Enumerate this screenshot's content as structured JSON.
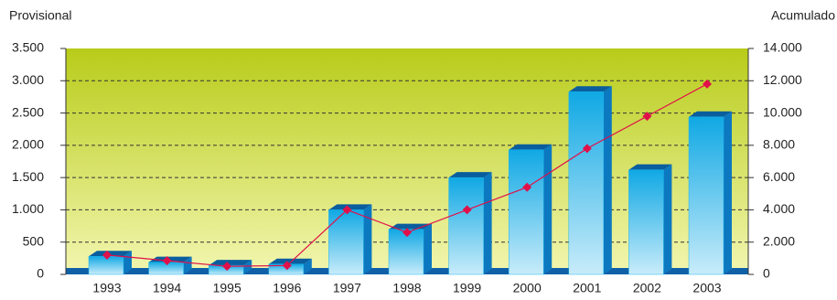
{
  "chart_data": {
    "type": "bar-line",
    "ylabel": "Provisional",
    "y2label": "Acumulado",
    "categories": [
      "1993",
      "1994",
      "1995",
      "1996",
      "1997",
      "1998",
      "1999",
      "2000",
      "2001",
      "2002",
      "2003"
    ],
    "series": [
      {
        "type": "bar",
        "color": "#18b4ec",
        "values": [
          280,
          190,
          140,
          160,
          1000,
          700,
          1500,
          1930,
          2830,
          1620,
          2440
        ]
      },
      {
        "type": "line",
        "axis": "y2",
        "color": "#e0104a",
        "values": [
          1200,
          850,
          500,
          550,
          4000,
          2600,
          4000,
          5400,
          7800,
          9800,
          11800
        ]
      }
    ],
    "ylim": [
      0,
      3500
    ],
    "yticks": [
      0,
      500,
      {
        "value": 1000,
        "label": "1.000"
      },
      {
        "value": 1500,
        "label": "1.500"
      },
      {
        "value": 2000,
        "label": "2.000"
      },
      {
        "value": 2500,
        "label": "2.500"
      },
      {
        "value": 3000,
        "label": "3.000"
      },
      {
        "value": 3500,
        "label": "3.500"
      }
    ],
    "y2lim": [
      0,
      14000
    ],
    "y2ticks": [
      0,
      {
        "value": 2000,
        "label": "2.000"
      },
      {
        "value": 4000,
        "label": "4.000"
      },
      {
        "value": 6000,
        "label": "6.000"
      },
      {
        "value": 8000,
        "label": "8.000"
      },
      {
        "value": 10000,
        "label": "10.000"
      },
      {
        "value": 12000,
        "label": "12.000"
      },
      {
        "value": 14000,
        "label": "14.000"
      }
    ],
    "grid": true
  }
}
